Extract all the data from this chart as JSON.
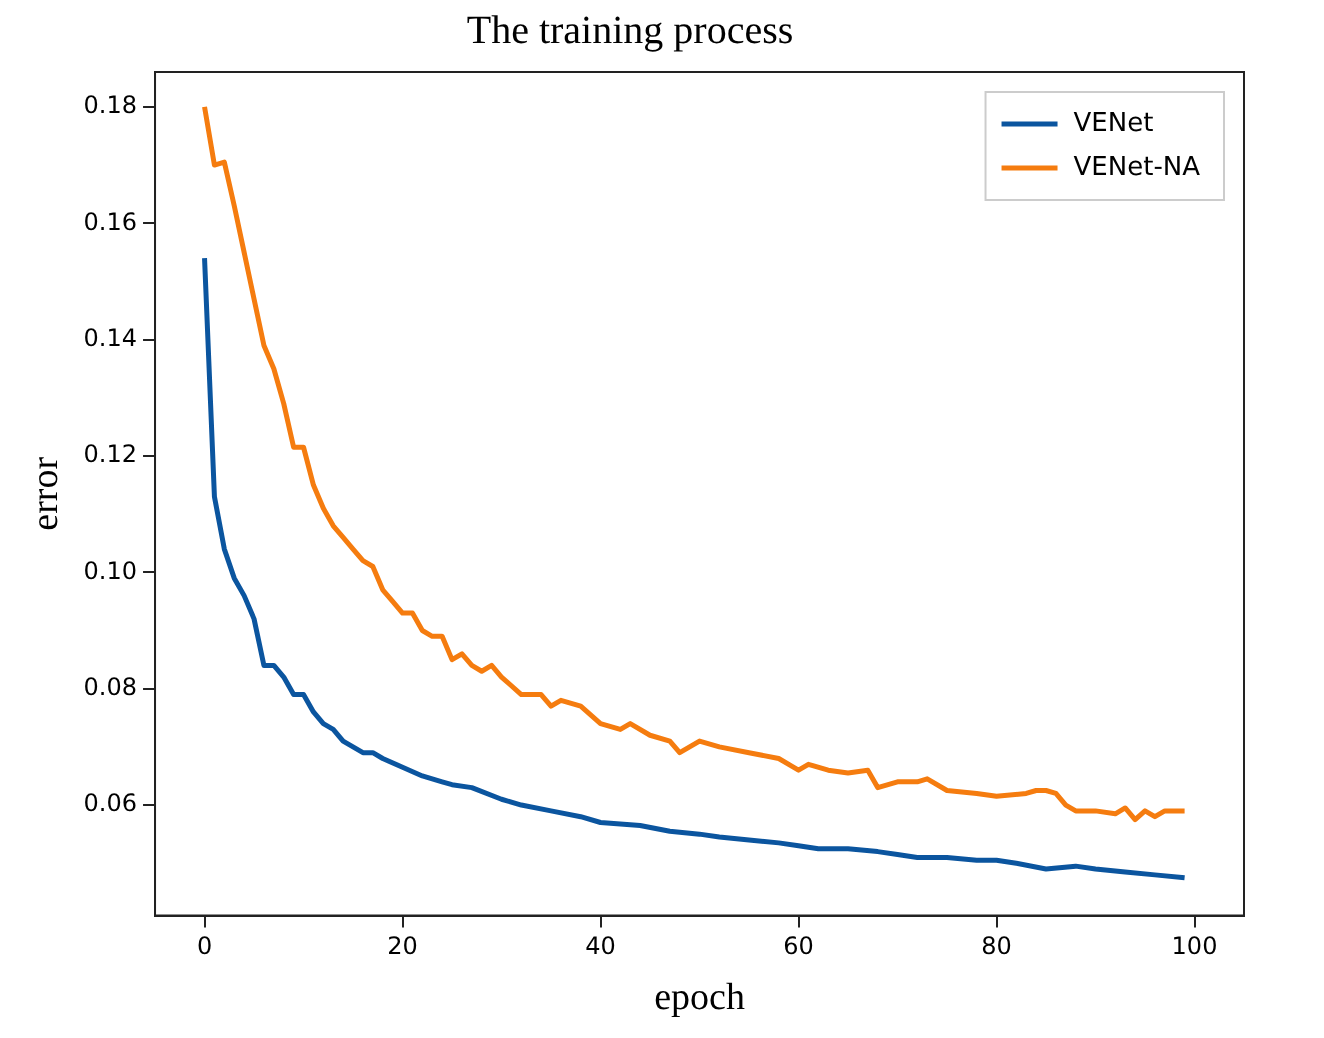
{
  "chart_data": {
    "type": "line",
    "title": "The training process",
    "xlabel": "epoch",
    "ylabel": "error",
    "xlim": [
      -5,
      105
    ],
    "xticks": [
      0,
      20,
      40,
      60,
      80,
      100
    ],
    "ylim": [
      0.041,
      0.186
    ],
    "yticks": [
      {
        "value": 0.06,
        "label": "0.06"
      },
      {
        "value": 0.08,
        "label": "0.08"
      },
      {
        "value": 0.1,
        "label": "0.10"
      },
      {
        "value": 0.12,
        "label": "0.12"
      },
      {
        "value": 0.14,
        "label": "0.14"
      },
      {
        "value": 0.16,
        "label": "0.16"
      },
      {
        "value": 0.18,
        "label": "0.18"
      }
    ],
    "grid": false,
    "legend": "top right",
    "marker": "none",
    "line_style": "solid",
    "series": [
      {
        "name": "VENet",
        "color": "#0b559f",
        "x": [
          0,
          1,
          2,
          3,
          4,
          5,
          6,
          7,
          8,
          9,
          10,
          11,
          12,
          13,
          14,
          15,
          16,
          17,
          18,
          20,
          22,
          24,
          25,
          27,
          30,
          32,
          35,
          38,
          40,
          44,
          47,
          50,
          52,
          55,
          58,
          60,
          62,
          65,
          68,
          70,
          72,
          75,
          78,
          80,
          82,
          85,
          88,
          90,
          93,
          96,
          99
        ],
        "values": [
          0.154,
          0.113,
          0.104,
          0.099,
          0.096,
          0.092,
          0.084,
          0.084,
          0.082,
          0.079,
          0.079,
          0.076,
          0.074,
          0.073,
          0.071,
          0.07,
          0.069,
          0.069,
          0.068,
          0.0665,
          0.065,
          0.064,
          0.0635,
          0.063,
          0.061,
          0.06,
          0.059,
          0.058,
          0.057,
          0.0565,
          0.0555,
          0.055,
          0.0545,
          0.054,
          0.0535,
          0.053,
          0.0525,
          0.0525,
          0.052,
          0.0515,
          0.051,
          0.051,
          0.0505,
          0.0505,
          0.05,
          0.049,
          0.0495,
          0.049,
          0.0485,
          0.048,
          0.0475
        ]
      },
      {
        "name": "VENet-NA",
        "color": "#f57c0f",
        "x": [
          0,
          1,
          2,
          3,
          4,
          5,
          6,
          7,
          8,
          9,
          10,
          11,
          12,
          13,
          14,
          15,
          16,
          17,
          18,
          19,
          20,
          21,
          22,
          23,
          24,
          25,
          26,
          27,
          28,
          29,
          30,
          32,
          34,
          35,
          36,
          38,
          40,
          42,
          43,
          45,
          47,
          48,
          49,
          50,
          52,
          55,
          58,
          60,
          61,
          63,
          65,
          67,
          68,
          70,
          72,
          73,
          75,
          78,
          80,
          83,
          84,
          85,
          86,
          87,
          88,
          90,
          92,
          93,
          94,
          95,
          96,
          97,
          98,
          99
        ],
        "values": [
          0.18,
          0.17,
          0.1705,
          0.163,
          0.155,
          0.147,
          0.139,
          0.135,
          0.129,
          0.1215,
          0.1215,
          0.115,
          0.111,
          0.108,
          0.106,
          0.104,
          0.102,
          0.101,
          0.097,
          0.095,
          0.093,
          0.093,
          0.09,
          0.089,
          0.089,
          0.085,
          0.086,
          0.084,
          0.083,
          0.084,
          0.082,
          0.079,
          0.079,
          0.077,
          0.078,
          0.077,
          0.074,
          0.073,
          0.074,
          0.072,
          0.071,
          0.069,
          0.07,
          0.071,
          0.07,
          0.069,
          0.068,
          0.066,
          0.067,
          0.066,
          0.0655,
          0.066,
          0.063,
          0.064,
          0.064,
          0.0645,
          0.0625,
          0.062,
          0.0615,
          0.062,
          0.0625,
          0.0625,
          0.062,
          0.06,
          0.059,
          0.059,
          0.0585,
          0.0595,
          0.0575,
          0.059,
          0.058,
          0.059,
          0.059,
          0.059
        ]
      }
    ]
  }
}
